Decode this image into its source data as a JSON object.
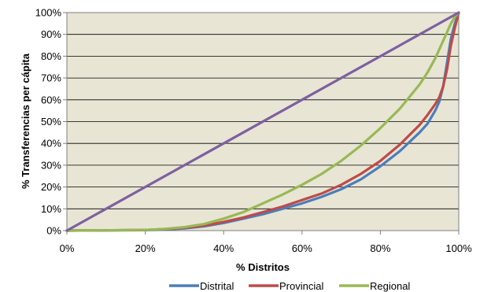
{
  "chart_data": {
    "type": "line",
    "xlabel": "% Distritos",
    "ylabel": "% Transferencias  per cápita",
    "xlim": [
      0,
      100
    ],
    "ylim": [
      0,
      100
    ],
    "x_ticks": [
      "0%",
      "20%",
      "40%",
      "60%",
      "80%",
      "100%"
    ],
    "y_ticks": [
      "0%",
      "10%",
      "20%",
      "30%",
      "40%",
      "50%",
      "60%",
      "70%",
      "80%",
      "90%",
      "100%"
    ],
    "grid": "horizontal",
    "legend_position": "bottom",
    "series": [
      {
        "name": "Distrital",
        "color": "#4a7ebb",
        "points": [
          [
            0,
            0
          ],
          [
            20,
            0.2
          ],
          [
            25,
            0.5
          ],
          [
            30,
            1
          ],
          [
            35,
            2
          ],
          [
            40,
            3.5
          ],
          [
            45,
            5.5
          ],
          [
            50,
            7.5
          ],
          [
            55,
            10
          ],
          [
            60,
            12.5
          ],
          [
            65,
            15.5
          ],
          [
            70,
            19
          ],
          [
            75,
            23.5
          ],
          [
            80,
            29.5
          ],
          [
            85,
            36.5
          ],
          [
            90,
            45
          ],
          [
            92,
            49
          ],
          [
            94,
            55
          ],
          [
            95,
            59
          ],
          [
            96,
            66
          ],
          [
            97,
            77
          ],
          [
            98,
            88
          ],
          [
            99,
            95
          ],
          [
            100,
            100
          ]
        ]
      },
      {
        "name": "Provincial",
        "color": "#be4b48",
        "points": [
          [
            0,
            0
          ],
          [
            20,
            0.3
          ],
          [
            25,
            0.7
          ],
          [
            30,
            1.3
          ],
          [
            35,
            2.3
          ],
          [
            40,
            4
          ],
          [
            45,
            6
          ],
          [
            50,
            8.5
          ],
          [
            55,
            11
          ],
          [
            60,
            14
          ],
          [
            65,
            17
          ],
          [
            70,
            21
          ],
          [
            75,
            26
          ],
          [
            80,
            32
          ],
          [
            85,
            39.5
          ],
          [
            90,
            48.5
          ],
          [
            92,
            53
          ],
          [
            94,
            58
          ],
          [
            95,
            61
          ],
          [
            96,
            66
          ],
          [
            97,
            74
          ],
          [
            98,
            85
          ],
          [
            99,
            93
          ],
          [
            100,
            100
          ]
        ]
      },
      {
        "name": "Regional",
        "color": "#98b954",
        "points": [
          [
            0,
            0
          ],
          [
            20,
            0.3
          ],
          [
            25,
            0.8
          ],
          [
            30,
            1.6
          ],
          [
            35,
            3
          ],
          [
            40,
            5.5
          ],
          [
            45,
            8.5
          ],
          [
            50,
            12.5
          ],
          [
            55,
            16.5
          ],
          [
            60,
            21
          ],
          [
            65,
            26
          ],
          [
            70,
            32
          ],
          [
            75,
            39
          ],
          [
            80,
            47
          ],
          [
            85,
            56
          ],
          [
            90,
            67
          ],
          [
            92,
            72.5
          ],
          [
            94,
            79
          ],
          [
            95,
            83
          ],
          [
            96,
            87
          ],
          [
            97,
            91
          ],
          [
            98,
            95
          ],
          [
            99,
            98
          ],
          [
            100,
            100
          ]
        ]
      },
      {
        "name": "",
        "color": "#7d60a0",
        "points": [
          [
            0,
            0
          ],
          [
            100,
            100
          ]
        ]
      }
    ]
  }
}
